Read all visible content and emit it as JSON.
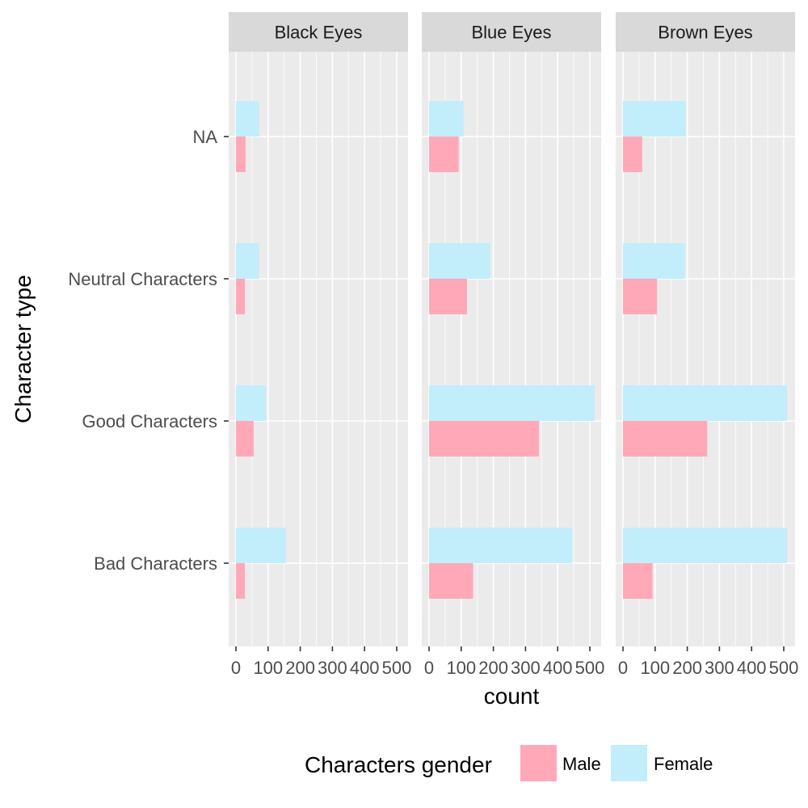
{
  "chart_data": {
    "type": "bar",
    "orientation": "horizontal",
    "facets": [
      "Black Eyes",
      "Blue Eyes",
      "Brown Eyes"
    ],
    "categories": [
      "NA",
      "Neutral Characters",
      "Good Characters",
      "Bad Characters"
    ],
    "series": [
      {
        "name": "Male",
        "color": "#ffa9b8",
        "values": {
          "Black Eyes": [
            30,
            28,
            55,
            28
          ],
          "Blue Eyes": [
            92,
            118,
            342,
            137
          ],
          "Brown Eyes": [
            60,
            106,
            262,
            92
          ]
        }
      },
      {
        "name": "Female",
        "color": "#c2edfb",
        "values": {
          "Black Eyes": [
            72,
            72,
            93,
            155
          ],
          "Blue Eyes": [
            107,
            190,
            515,
            445
          ],
          "Brown Eyes": [
            195,
            192,
            510,
            510
          ]
        }
      }
    ],
    "xlabel": "count",
    "ylabel": "Character type",
    "xlim": [
      0,
      520
    ],
    "xticks": [
      0,
      100,
      200,
      300,
      400,
      500
    ],
    "xtick_labels": [
      "0",
      "100",
      "200",
      "300",
      "400",
      "500"
    ],
    "legend": {
      "title": "Characters gender",
      "position": "bottom",
      "entries": [
        "Male",
        "Female"
      ]
    },
    "grid": true,
    "panel_background": "#ebebeb",
    "strip_background": "#d9d9d9"
  }
}
